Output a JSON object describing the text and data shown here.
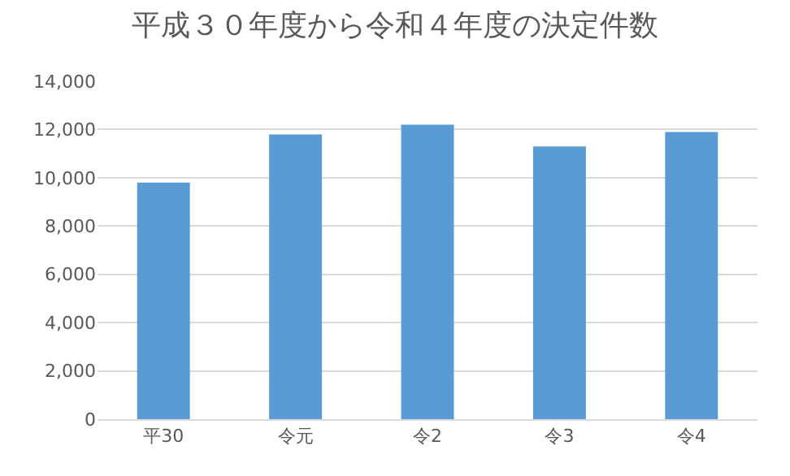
{
  "chart_data": {
    "type": "bar",
    "title": "平成３０年度から令和４年度の決定件数",
    "categories": [
      "平30",
      "令元",
      "令2",
      "令3",
      "令4"
    ],
    "values": [
      9800,
      11800,
      12200,
      11300,
      11900
    ],
    "color": "#5b9bd5",
    "ylim": [
      0,
      14000
    ],
    "yticks": [
      {
        "value": 0,
        "label": "0"
      },
      {
        "value": 2000,
        "label": "2,000"
      },
      {
        "value": 4000,
        "label": "4,000"
      },
      {
        "value": 6000,
        "label": "6,000"
      },
      {
        "value": 8000,
        "label": "8,000"
      },
      {
        "value": 10000,
        "label": "10,000"
      },
      {
        "value": 12000,
        "label": "12,000"
      },
      {
        "value": 14000,
        "label": "14,000"
      }
    ],
    "grid": "y",
    "legend": false
  }
}
